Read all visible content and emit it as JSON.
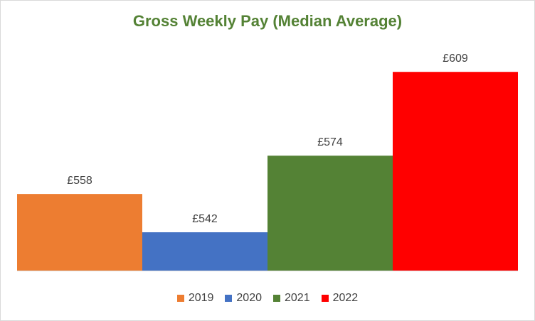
{
  "chart_data": {
    "type": "bar",
    "title": "Gross Weekly Pay (Median Average)",
    "categories": [
      "2019",
      "2020",
      "2021",
      "2022"
    ],
    "values": [
      558,
      542,
      574,
      609
    ],
    "data_labels": [
      "£558",
      "£542",
      "£574",
      "£609"
    ],
    "colors": [
      "#ED7D31",
      "#4472C4",
      "#548235",
      "#FF0000"
    ],
    "ylim": [
      526,
      615
    ],
    "grid": false,
    "legend_position": "bottom",
    "xlabel": "",
    "ylabel": ""
  },
  "legend": {
    "items": [
      {
        "label": "2019",
        "color": "#ED7D31"
      },
      {
        "label": "2020",
        "color": "#4472C4"
      },
      {
        "label": "2021",
        "color": "#548235"
      },
      {
        "label": "2022",
        "color": "#FF0000"
      }
    ]
  }
}
